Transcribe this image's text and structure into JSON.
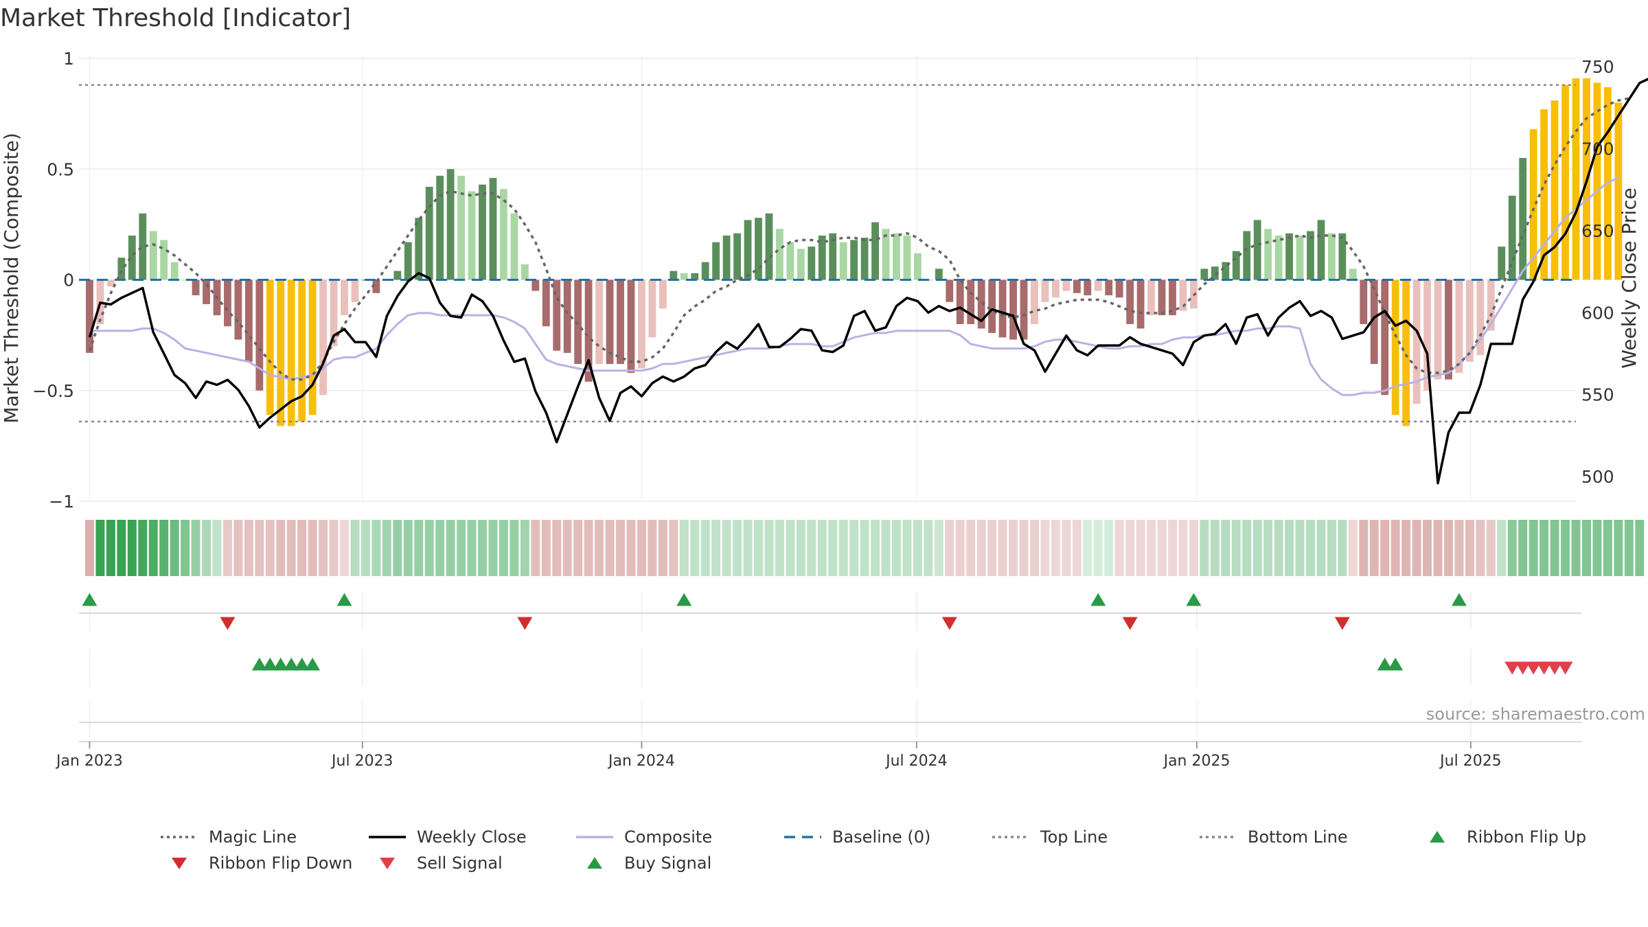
{
  "chart_data": {
    "type": "bar",
    "title": "Market Threshold [Indicator]",
    "ylabel_left": "Market Threshold (Composite)",
    "ylabel_right": "Weekly Close Price",
    "source": "source: sharemaestro.com",
    "ylim_left": [
      -1,
      1
    ],
    "yticks_left": [
      1,
      0.5,
      0,
      -0.5,
      -1
    ],
    "ytick_labels_left": [
      "1",
      "0.5",
      "0",
      "−0.5",
      "−1"
    ],
    "ylim_right": [
      485,
      755
    ],
    "yticks_right": [
      750,
      700,
      650,
      600,
      550,
      500
    ],
    "x_range_weeks": [
      -1,
      140
    ],
    "x_ticks": [
      {
        "week": 0,
        "label": "Jan 2023"
      },
      {
        "week": 25.7,
        "label": "Jul 2023"
      },
      {
        "week": 52,
        "label": "Jan 2024"
      },
      {
        "week": 77.9,
        "label": "Jul 2024"
      },
      {
        "week": 104.3,
        "label": "Jan 2025"
      },
      {
        "week": 130.1,
        "label": "Jul 2025"
      }
    ],
    "top_line": 0.88,
    "bottom_line": -0.64,
    "baseline": 0,
    "grid": true,
    "composite_bars": [
      -0.33,
      -0.2,
      -0.03,
      0.1,
      0.2,
      0.3,
      0.22,
      0.18,
      0.08,
      0,
      -0.07,
      -0.11,
      -0.16,
      -0.21,
      -0.27,
      -0.37,
      -0.5,
      -0.61,
      -0.66,
      -0.66,
      -0.64,
      -0.61,
      -0.52,
      -0.3,
      -0.16,
      -0.1,
      0,
      -0.06,
      0,
      0.04,
      0.17,
      0.28,
      0.42,
      0.47,
      0.5,
      0.47,
      0.4,
      0.43,
      0.46,
      0.41,
      0.3,
      0.07,
      -0.05,
      -0.21,
      -0.32,
      -0.33,
      -0.38,
      -0.46,
      -0.38,
      -0.38,
      -0.38,
      -0.42,
      -0.4,
      -0.26,
      -0.13,
      0.04,
      0.03,
      0.03,
      0.08,
      0.17,
      0.2,
      0.21,
      0.27,
      0.28,
      0.3,
      0.23,
      0.17,
      0.14,
      0.15,
      0.2,
      0.21,
      0.17,
      0.18,
      0.19,
      0.26,
      0.23,
      0.21,
      0.2,
      0.12,
      0,
      0.05,
      -0.1,
      -0.2,
      -0.2,
      -0.22,
      -0.24,
      -0.26,
      -0.27,
      -0.27,
      -0.2,
      -0.1,
      -0.08,
      -0.05,
      -0.06,
      -0.07,
      -0.05,
      -0.07,
      -0.08,
      -0.2,
      -0.22,
      -0.16,
      -0.16,
      -0.16,
      -0.14,
      -0.13,
      0.05,
      0.06,
      0.08,
      0.13,
      0.22,
      0.27,
      0.23,
      0.2,
      0.21,
      0.2,
      0.22,
      0.27,
      0.21,
      0.21,
      0.05,
      -0.2,
      -0.38,
      -0.52,
      -0.61,
      -0.66,
      -0.56,
      -0.5,
      -0.45,
      -0.45,
      -0.42,
      -0.37,
      -0.34,
      -0.23,
      0.15,
      0.38,
      0.55,
      0.68,
      0.77,
      0.81,
      0.88,
      0.91,
      0.91,
      0.89,
      0.87,
      0.8
    ],
    "weekly_close": [
      585,
      606,
      605,
      609,
      612,
      615,
      588,
      575,
      562,
      557,
      548,
      558,
      556,
      559,
      553,
      543,
      530,
      536,
      541,
      546,
      549,
      556,
      569,
      586,
      590,
      582,
      582,
      573,
      598,
      610,
      619,
      624,
      621,
      606,
      598,
      597,
      611,
      607,
      598,
      583,
      570,
      572,
      552,
      539,
      521,
      538,
      555,
      571,
      548,
      534,
      551,
      555,
      549,
      557,
      561,
      558,
      561,
      566,
      568,
      576,
      582,
      578,
      585,
      593,
      579,
      579,
      584,
      590,
      589,
      577,
      576,
      580,
      598,
      601,
      589,
      591,
      604,
      609,
      607,
      600,
      604,
      601,
      603,
      599,
      595,
      602,
      600,
      598,
      581,
      577,
      564,
      575,
      586,
      577,
      574,
      580,
      580,
      580,
      585,
      581,
      579,
      577,
      575,
      568,
      582,
      586,
      587,
      593,
      581,
      597,
      599,
      586,
      597,
      603,
      607,
      598,
      601,
      597,
      584,
      586,
      588,
      597,
      601,
      592,
      595,
      589,
      575,
      496,
      527,
      539,
      539,
      556,
      581,
      581,
      581,
      608,
      619,
      635,
      640,
      648,
      661,
      680,
      701,
      710,
      720,
      730,
      740,
      743,
      746,
      748,
      735
    ],
    "magic_line": [
      -0.32,
      -0.18,
      -0.06,
      0.04,
      0.11,
      0.15,
      0.16,
      0.14,
      0.11,
      0.07,
      0.03,
      -0.02,
      -0.08,
      -0.14,
      -0.19,
      -0.25,
      -0.31,
      -0.37,
      -0.42,
      -0.45,
      -0.45,
      -0.43,
      -0.37,
      -0.28,
      -0.2,
      -0.13,
      -0.07,
      -0.01,
      0.06,
      0.13,
      0.2,
      0.27,
      0.33,
      0.38,
      0.4,
      0.39,
      0.38,
      0.39,
      0.39,
      0.36,
      0.32,
      0.25,
      0.17,
      0.05,
      -0.08,
      -0.15,
      -0.2,
      -0.26,
      -0.3,
      -0.33,
      -0.35,
      -0.37,
      -0.37,
      -0.35,
      -0.31,
      -0.24,
      -0.16,
      -0.12,
      -0.09,
      -0.05,
      -0.03,
      0,
      0.02,
      0.05,
      0.1,
      0.14,
      0.17,
      0.18,
      0.18,
      0.17,
      0.18,
      0.19,
      0.19,
      0.18,
      0.18,
      0.2,
      0.2,
      0.21,
      0.19,
      0.15,
      0.13,
      0.09,
      0,
      -0.06,
      -0.1,
      -0.14,
      -0.16,
      -0.17,
      -0.16,
      -0.14,
      -0.13,
      -0.11,
      -0.1,
      -0.09,
      -0.09,
      -0.09,
      -0.1,
      -0.12,
      -0.14,
      -0.15,
      -0.15,
      -0.15,
      -0.14,
      -0.12,
      -0.07,
      -0.02,
      0.02,
      0.06,
      0.1,
      0.14,
      0.16,
      0.17,
      0.18,
      0.19,
      0.2,
      0.19,
      0.2,
      0.2,
      0.19,
      0.13,
      0.06,
      -0.04,
      -0.15,
      -0.25,
      -0.34,
      -0.4,
      -0.42,
      -0.42,
      -0.41,
      -0.38,
      -0.33,
      -0.25,
      -0.16,
      -0.04,
      0.08,
      0.2,
      0.32,
      0.43,
      0.52,
      0.6,
      0.67,
      0.73,
      0.76,
      0.79,
      0.81,
      0.82
    ],
    "composite_line": [
      -0.23,
      -0.23,
      -0.23,
      -0.23,
      -0.23,
      -0.22,
      -0.22,
      -0.24,
      -0.27,
      -0.31,
      -0.32,
      -0.33,
      -0.34,
      -0.35,
      -0.36,
      -0.37,
      -0.4,
      -0.43,
      -0.44,
      -0.45,
      -0.44,
      -0.43,
      -0.4,
      -0.36,
      -0.35,
      -0.35,
      -0.33,
      -0.31,
      -0.25,
      -0.2,
      -0.16,
      -0.15,
      -0.15,
      -0.16,
      -0.16,
      -0.16,
      -0.16,
      -0.16,
      -0.16,
      -0.17,
      -0.19,
      -0.22,
      -0.29,
      -0.36,
      -0.38,
      -0.39,
      -0.4,
      -0.41,
      -0.41,
      -0.41,
      -0.41,
      -0.41,
      -0.41,
      -0.4,
      -0.38,
      -0.38,
      -0.37,
      -0.36,
      -0.35,
      -0.34,
      -0.33,
      -0.32,
      -0.31,
      -0.31,
      -0.31,
      -0.3,
      -0.29,
      -0.29,
      -0.29,
      -0.3,
      -0.3,
      -0.28,
      -0.26,
      -0.25,
      -0.24,
      -0.24,
      -0.23,
      -0.23,
      -0.23,
      -0.23,
      -0.23,
      -0.23,
      -0.25,
      -0.29,
      -0.3,
      -0.31,
      -0.31,
      -0.31,
      -0.31,
      -0.3,
      -0.28,
      -0.27,
      -0.27,
      -0.28,
      -0.29,
      -0.3,
      -0.31,
      -0.31,
      -0.3,
      -0.3,
      -0.29,
      -0.29,
      -0.27,
      -0.26,
      -0.26,
      -0.25,
      -0.25,
      -0.24,
      -0.23,
      -0.23,
      -0.22,
      -0.22,
      -0.21,
      -0.21,
      -0.22,
      -0.38,
      -0.45,
      -0.49,
      -0.52,
      -0.52,
      -0.51,
      -0.51,
      -0.5,
      -0.48,
      -0.47,
      -0.46,
      -0.44,
      -0.43,
      -0.42,
      -0.38,
      -0.33,
      -0.27,
      -0.2,
      -0.12,
      -0.04,
      0.04,
      0.1,
      0.16,
      0.22,
      0.28,
      0.32,
      0.36,
      0.4,
      0.44,
      0.46
    ],
    "ribbon_intensity": [
      -0.6,
      0.95,
      0.95,
      0.95,
      0.95,
      0.9,
      0.85,
      0.8,
      0.7,
      0.6,
      0.5,
      0.4,
      0.3,
      -0.4,
      -0.45,
      -0.45,
      -0.45,
      -0.45,
      -0.5,
      -0.5,
      -0.5,
      -0.5,
      -0.45,
      -0.4,
      -0.3,
      0.35,
      0.35,
      0.4,
      0.45,
      0.5,
      0.5,
      0.5,
      0.5,
      0.5,
      0.5,
      0.5,
      0.5,
      0.5,
      0.5,
      0.5,
      0.5,
      0.45,
      -0.5,
      -0.5,
      -0.5,
      -0.5,
      -0.5,
      -0.5,
      -0.5,
      -0.5,
      -0.5,
      -0.5,
      -0.5,
      -0.5,
      -0.5,
      -0.45,
      0.3,
      0.3,
      0.3,
      0.3,
      0.3,
      0.3,
      0.3,
      0.3,
      0.3,
      0.3,
      0.3,
      0.3,
      0.3,
      0.3,
      0.3,
      0.3,
      0.3,
      0.3,
      0.3,
      0.3,
      0.3,
      0.3,
      0.3,
      0.3,
      0.25,
      -0.35,
      -0.35,
      -0.35,
      -0.35,
      -0.35,
      -0.35,
      -0.35,
      -0.35,
      -0.35,
      -0.3,
      -0.3,
      -0.3,
      -0.3,
      0.2,
      0.2,
      0.2,
      -0.3,
      -0.3,
      -0.3,
      -0.3,
      -0.3,
      -0.3,
      -0.3,
      -0.3,
      0.35,
      0.35,
      0.35,
      0.35,
      0.35,
      0.35,
      0.35,
      0.35,
      0.35,
      0.35,
      0.35,
      0.35,
      0.35,
      0.35,
      -0.3,
      -0.55,
      -0.55,
      -0.55,
      -0.55,
      -0.55,
      -0.55,
      -0.55,
      -0.55,
      -0.55,
      -0.5,
      -0.5,
      -0.45,
      -0.4,
      0.3,
      0.55,
      0.6,
      0.6,
      0.6,
      0.6,
      0.6,
      0.6,
      0.6,
      0.6,
      0.6,
      0.6,
      0.6,
      0.6
    ],
    "ribbon_flip_up_weeks": [
      0,
      24,
      56,
      95,
      104,
      129
    ],
    "ribbon_flip_down_weeks": [
      13,
      41,
      81,
      98,
      118
    ],
    "buy_signal_weeks": [
      16,
      17,
      18,
      19,
      20,
      21,
      122,
      123
    ],
    "sell_signal_weeks": [
      134,
      135,
      136,
      137,
      138,
      139
    ],
    "legend": [
      {
        "label": "Magic Line",
        "symbol": "dotted-line",
        "color": "#666666"
      },
      {
        "label": "Weekly Close",
        "symbol": "solid-line",
        "color": "#000000"
      },
      {
        "label": "Composite",
        "symbol": "solid-line",
        "color": "#b8b2e4"
      },
      {
        "label": "Baseline (0)",
        "symbol": "dashed-line",
        "color": "#2a6fa1"
      },
      {
        "label": "Top Line",
        "symbol": "dotted-line",
        "color": "#888888"
      },
      {
        "label": "Bottom Line",
        "symbol": "dotted-line",
        "color": "#888888"
      },
      {
        "label": "Ribbon Flip Up",
        "symbol": "triangle-up",
        "color": "#2a9a47"
      },
      {
        "label": "Ribbon Flip Down",
        "symbol": "triangle-down",
        "color": "#d12e2e"
      },
      {
        "label": "Sell Signal",
        "symbol": "triangle-down",
        "color": "#e0404a"
      },
      {
        "label": "Buy Signal",
        "symbol": "triangle-up",
        "color": "#2a9a47"
      }
    ],
    "colors": {
      "strong_green": "#5a8f5c",
      "light_green": "#a9d7a3",
      "strong_red": "#a86b6b",
      "light_red": "#e9c0bc",
      "extreme": "#f7bf0a"
    }
  }
}
